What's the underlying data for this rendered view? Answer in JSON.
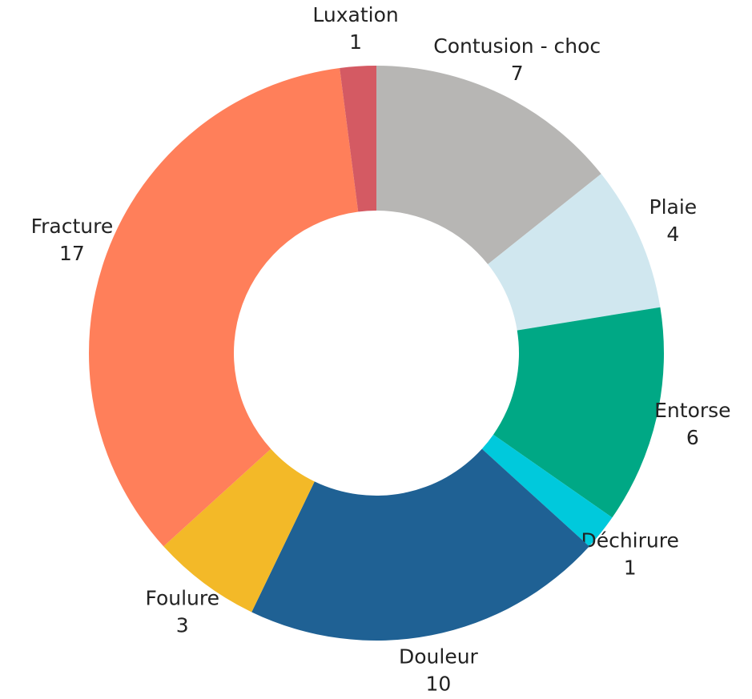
{
  "chart_data": {
    "type": "donut",
    "categories": [
      "Contusion - choc",
      "Plaie",
      "Entorse",
      "Déchirure",
      "Douleur",
      "Foulure",
      "Fracture",
      "Luxation"
    ],
    "values": [
      7,
      4,
      6,
      1,
      10,
      3,
      17,
      1
    ],
    "colors": [
      "#b7b6b4",
      "#d0e7ef",
      "#00a885",
      "#00c9dc",
      "#1f6194",
      "#f3b928",
      "#ff7f5a",
      "#d45a63"
    ]
  }
}
